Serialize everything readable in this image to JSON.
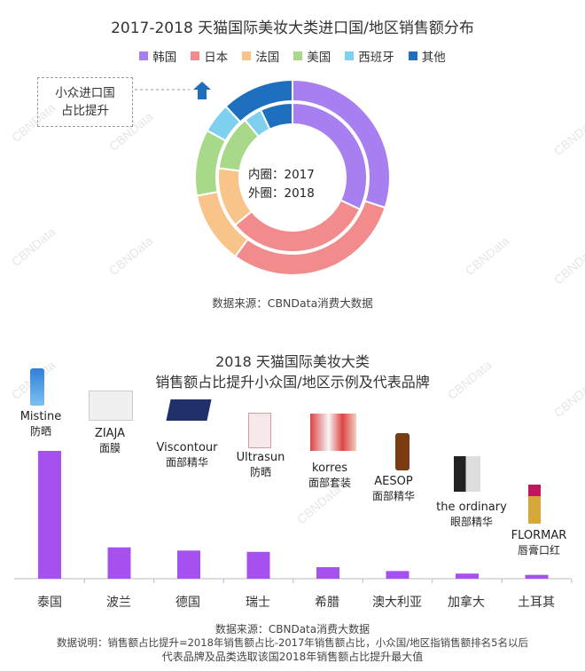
{
  "watermark": "CBNData",
  "donut": {
    "title": "2017-2018 天猫国际美妆大类进口国/地区销售额分布",
    "legend": [
      {
        "name": "韩国",
        "color": "#a77ff0"
      },
      {
        "name": "日本",
        "color": "#f28c8c"
      },
      {
        "name": "法国",
        "color": "#f8c48a"
      },
      {
        "name": "美国",
        "color": "#a8d98a"
      },
      {
        "name": "西班牙",
        "color": "#7fd0ee"
      },
      {
        "name": "其他",
        "color": "#1f6fbf"
      }
    ],
    "callout": [
      "小众进口国",
      "占比提升"
    ],
    "center": [
      "内圈：2017",
      "外圈：2018"
    ],
    "source": "数据来源：CBNData消费大数据"
  },
  "bar": {
    "title_line1": "2018 天猫国际美妆大类",
    "title_line2": "销售额占比提升小众国/地区示例及代表品牌",
    "source": "数据来源：CBNData消费大数据",
    "note_line1": "数据说明：销售额占比提升=2018年销售额占比-2017年销售额占比，小众国/地区指销售额排名5名以后",
    "note_line2": "代表品牌及品类选取该国2018年销售额占比提升最大值",
    "color": "#a650f0"
  },
  "chart_data": [
    {
      "type": "pie",
      "title": "2017-2018 天猫国际美妆大类进口国/地区销售额分布",
      "categories": [
        "韩国",
        "日本",
        "法国",
        "美国",
        "西班牙",
        "其他"
      ],
      "series": [
        {
          "name": "外圈：2018",
          "values": [
            30,
            30,
            12,
            11,
            5,
            12
          ]
        },
        {
          "name": "内圈：2017",
          "values": [
            32,
            32,
            13,
            12,
            4,
            7
          ]
        }
      ]
    },
    {
      "type": "bar",
      "title": "2018 天猫国际美妆大类 销售额占比提升小众国/地区示例及代表品牌",
      "categories": [
        "泰国",
        "波兰",
        "德国",
        "瑞士",
        "希腊",
        "澳大利亚",
        "加拿大",
        "土耳其"
      ],
      "values": [
        100,
        24.5,
        22,
        21,
        9,
        6,
        4,
        3
      ],
      "brands": [
        "Mistine",
        "ZIAJA",
        "Viscontour",
        "Ultrasun",
        "korres",
        "AESOP",
        "the ordinary",
        "FLORMAR"
      ],
      "product_types": [
        "防晒",
        "面膜",
        "面部精华",
        "防晒",
        "面部套装",
        "面部精华",
        "眼部精华",
        "唇膏口红"
      ]
    }
  ]
}
